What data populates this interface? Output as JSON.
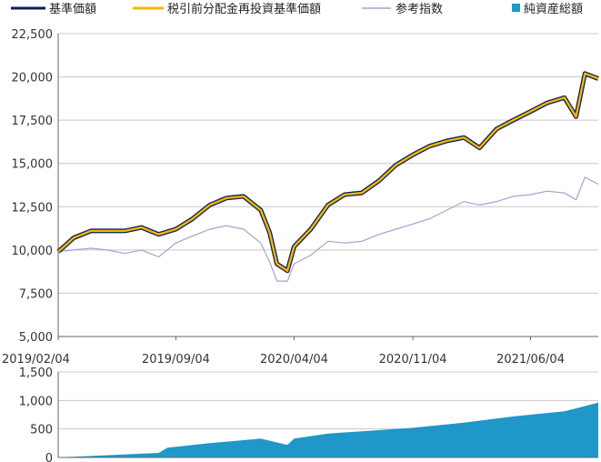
{
  "legend": {
    "nav_label": "基準価額",
    "nav_reinvested_label": "税引前分配金再投資基準価額",
    "index_label": "参考指数",
    "net_assets_label": "純資産総額"
  },
  "colors": {
    "nav": "#0b1f5c",
    "nav_reinvested": "#f5b800",
    "index": "#a5a2cf",
    "net_assets": "#1f97c8",
    "gridline": "#c8c8c8",
    "axis": "#666666"
  },
  "chart_data": [
    {
      "type": "line",
      "title": "",
      "xlabel": "",
      "ylabel": "",
      "x_ticks": [
        "2019/02/04",
        "2019/09/04",
        "2020/04/04",
        "2020/11/04",
        "2021/06/04"
      ],
      "x_range": [
        "2019/02/04",
        "2021/10/04"
      ],
      "y_ticks": [
        "5,000",
        "7,500",
        "10,000",
        "12,500",
        "15,000",
        "17,500",
        "20,000",
        "22,500"
      ],
      "ylim": [
        5000,
        22500
      ],
      "grid": true,
      "legend_position": "top",
      "x": [
        "2019/02/04",
        "2019/03/04",
        "2019/04/04",
        "2019/05/04",
        "2019/06/04",
        "2019/07/04",
        "2019/08/04",
        "2019/09/04",
        "2019/10/04",
        "2019/11/04",
        "2019/12/04",
        "2020/01/04",
        "2020/02/04",
        "2020/02/20",
        "2020/03/04",
        "2020/03/23",
        "2020/04/04",
        "2020/05/04",
        "2020/06/04",
        "2020/07/04",
        "2020/08/04",
        "2020/09/04",
        "2020/10/04",
        "2020/11/04",
        "2020/12/04",
        "2021/01/04",
        "2021/02/04",
        "2021/03/04",
        "2021/04/04",
        "2021/05/04",
        "2021/06/04",
        "2021/07/04",
        "2021/08/04",
        "2021/08/25",
        "2021/09/10",
        "2021/10/04"
      ],
      "series": [
        {
          "name": "基準価額",
          "values": [
            9900,
            10700,
            11100,
            11100,
            11100,
            11300,
            10900,
            11200,
            11800,
            12600,
            13000,
            13100,
            12300,
            11000,
            9200,
            8800,
            10200,
            11200,
            12600,
            13200,
            13300,
            14000,
            14900,
            15500,
            16000,
            16300,
            16500,
            15900,
            17000,
            17500,
            18000,
            18500,
            18800,
            17700,
            20200,
            19900
          ]
        },
        {
          "name": "税引前分配金再投資基準価額",
          "values": [
            9900,
            10700,
            11100,
            11100,
            11100,
            11300,
            10900,
            11200,
            11800,
            12600,
            13000,
            13100,
            12300,
            11000,
            9200,
            8800,
            10200,
            11200,
            12600,
            13200,
            13300,
            14000,
            14900,
            15500,
            16000,
            16300,
            16500,
            15900,
            17000,
            17500,
            18000,
            18500,
            18800,
            17700,
            20200,
            19900
          ]
        },
        {
          "name": "参考指数",
          "values": [
            9900,
            10000,
            10100,
            10000,
            9800,
            10000,
            9600,
            10400,
            10800,
            11200,
            11400,
            11200,
            10400,
            9300,
            8200,
            8200,
            9200,
            9700,
            10500,
            10400,
            10500,
            10900,
            11200,
            11500,
            11800,
            12300,
            12800,
            12600,
            12800,
            13100,
            13200,
            13400,
            13300,
            12900,
            14200,
            13800
          ]
        }
      ]
    },
    {
      "type": "area",
      "title": "",
      "xlabel": "",
      "ylabel": "",
      "y_ticks": [
        "0",
        "500",
        "1,000",
        "1,500"
      ],
      "ylim": [
        0,
        1500
      ],
      "grid": true,
      "series": [
        {
          "name": "純資産総額",
          "x": [
            "2019/02/04",
            "2019/05/04",
            "2019/08/04",
            "2019/08/20",
            "2019/11/04",
            "2020/02/04",
            "2020/03/23",
            "2020/04/04",
            "2020/06/04",
            "2020/08/04",
            "2020/11/04",
            "2021/02/04",
            "2021/05/04",
            "2021/08/04",
            "2021/10/04"
          ],
          "values": [
            0,
            40,
            80,
            170,
            250,
            330,
            220,
            330,
            420,
            460,
            520,
            610,
            720,
            810,
            960
          ]
        }
      ]
    }
  ]
}
